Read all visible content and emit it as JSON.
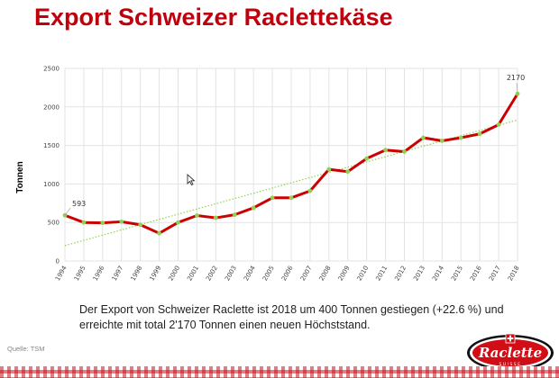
{
  "page": {
    "title": "Export Schweizer Raclettekäse",
    "caption_line1": "Der Export von Schweizer Raclette ist 2018 um 400 Tonnen gestiegen (+22.6 %) und",
    "caption_line2": "erreichte mit total 2'170 Tonnen einen neuen Höchststand.",
    "source": "Quelle: TSM",
    "logo_text": "Raclette",
    "logo_subtext": "SUISSE"
  },
  "colors": {
    "title": "#c0000c",
    "line": "#cc0000",
    "markers": "#8fd14f",
    "trend": "#8fd14f",
    "grid": "#e3e3e3"
  },
  "chart_data": {
    "type": "line",
    "title": "",
    "xlabel": "",
    "ylabel": "Tonnen",
    "x": [
      "1994",
      "1995",
      "1996",
      "1997",
      "1998",
      "1999",
      "2000",
      "2001",
      "2002",
      "2003",
      "2004",
      "2005",
      "2006",
      "2007",
      "2008",
      "2009",
      "2010",
      "2011",
      "2012",
      "2013",
      "2014",
      "2015",
      "2016",
      "2017",
      "2018"
    ],
    "series": [
      {
        "values": [
          593,
          500,
          495,
          510,
          470,
          360,
          500,
          590,
          560,
          600,
          690,
          820,
          820,
          910,
          1190,
          1160,
          1330,
          1440,
          1420,
          1600,
          1560,
          1600,
          1650,
          1770,
          2170
        ],
        "markers": true
      }
    ],
    "trendline": {
      "start": 200,
      "end": 1830,
      "style": "dotted",
      "color": "#8fd14f"
    },
    "yticks": [
      0,
      500,
      1000,
      1500,
      2000,
      2500
    ],
    "ylim": [
      0,
      2500
    ],
    "grid": true,
    "legend": "none",
    "annotations": [
      {
        "x": "1994",
        "text": "593"
      },
      {
        "x": "2018",
        "text": "2170"
      }
    ]
  }
}
